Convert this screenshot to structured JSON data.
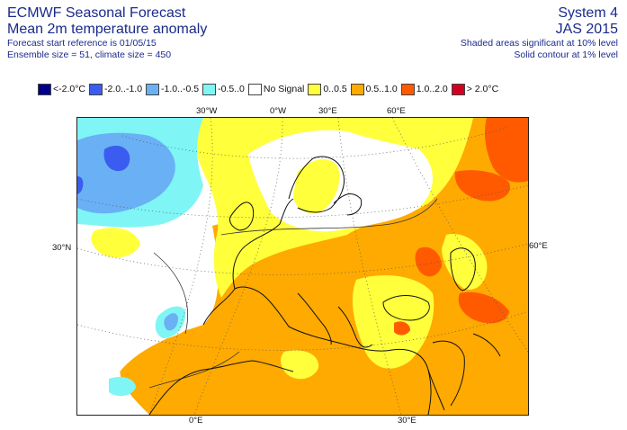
{
  "header": {
    "title": "ECMWF Seasonal Forecast",
    "subtitle": "Mean 2m temperature anomaly",
    "start_ref": "Forecast start reference is 01/05/15",
    "ensemble": "Ensemble size = 51, climate size = 450",
    "system": "System 4",
    "season": "JAS 2015",
    "sig10": "Shaded areas significant at 10% level",
    "sig1": "Solid contour at 1% level"
  },
  "legend": [
    {
      "label": "<-2.0°C",
      "color": "#00008c"
    },
    {
      "label": "-2.0..-1.0",
      "color": "#3a5cf0"
    },
    {
      "label": "-1.0..-0.5",
      "color": "#6ab0f5"
    },
    {
      "label": "-0.5..0",
      "color": "#7ff5f5"
    },
    {
      "label": "No Signal",
      "color": "#ffffff"
    },
    {
      "label": "0..0.5",
      "color": "#ffff3c"
    },
    {
      "label": "0.5..1.0",
      "color": "#ffaa00"
    },
    {
      "label": "1.0..2.0",
      "color": "#ff5a00"
    },
    {
      "label": "> 2.0°C",
      "color": "#d20020"
    }
  ],
  "axes": {
    "top": [
      "30°W",
      "0°W",
      "30°E",
      "60°E"
    ],
    "left": "30°N",
    "right": "60°E",
    "bottom": [
      "0°E",
      "30°E"
    ]
  }
}
